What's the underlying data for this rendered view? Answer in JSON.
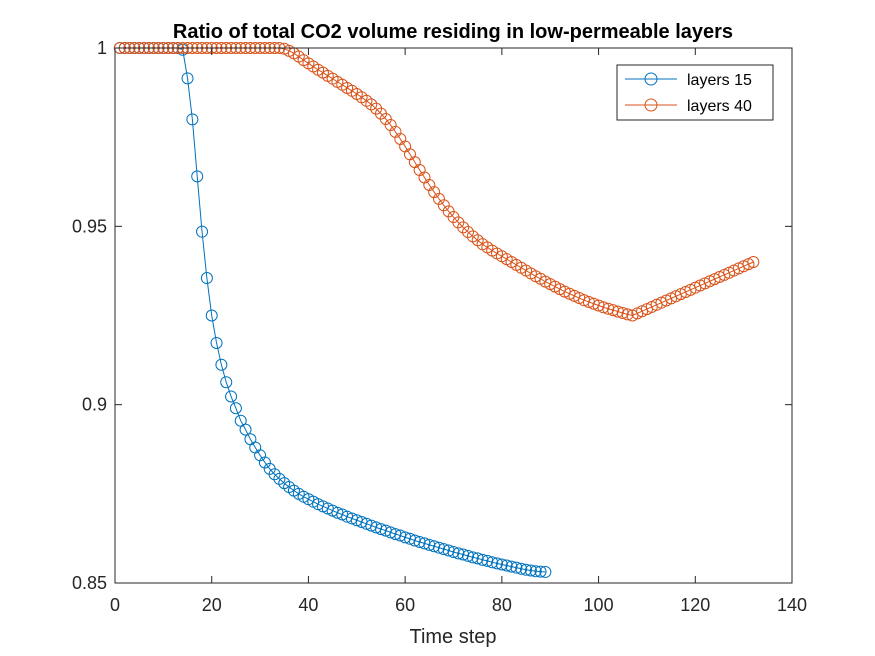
{
  "chart_data": {
    "type": "line",
    "title": "Ratio of total CO2 volume residing in low-permeable layers",
    "xlabel": "Time step",
    "ylabel": "",
    "xlim": [
      0,
      140
    ],
    "ylim": [
      0.85,
      1.0
    ],
    "xticks": [
      0,
      20,
      40,
      60,
      80,
      100,
      120,
      140
    ],
    "yticks": [
      0.85,
      0.9,
      0.95,
      1.0
    ],
    "xtick_labels": [
      "0",
      "20",
      "40",
      "60",
      "80",
      "100",
      "120",
      "140"
    ],
    "ytick_labels": [
      "0.85",
      "0.9",
      "0.95",
      "1"
    ],
    "grid": false,
    "legend_position": "top-right",
    "marker": "circle",
    "series": [
      {
        "name": "layers 15",
        "color": "#0072BD",
        "x": [
          1,
          2,
          3,
          4,
          5,
          6,
          7,
          8,
          9,
          10,
          11,
          12,
          13,
          14,
          15,
          16,
          17,
          18,
          19,
          20,
          21,
          22,
          23,
          24,
          25,
          26,
          27,
          28,
          29,
          30,
          31,
          32,
          33,
          34,
          35,
          36,
          37,
          38,
          39,
          40,
          41,
          42,
          43,
          44,
          45,
          46,
          47,
          48,
          49,
          50,
          51,
          52,
          53,
          54,
          55,
          56,
          57,
          58,
          59,
          60,
          61,
          62,
          63,
          64,
          65,
          66,
          67,
          68,
          69,
          70,
          71,
          72,
          73,
          74,
          75,
          76,
          77,
          78,
          79,
          80,
          81,
          82,
          83,
          84,
          85,
          86,
          87,
          88,
          89
        ],
        "y": [
          1.0,
          1.0,
          1.0,
          1.0,
          1.0,
          1.0,
          1.0,
          1.0,
          1.0,
          1.0,
          1.0,
          1.0,
          1.0,
          0.9995,
          0.9915,
          0.98,
          0.964,
          0.9485,
          0.9355,
          0.925,
          0.9173,
          0.9112,
          0.9063,
          0.9023,
          0.899,
          0.8955,
          0.893,
          0.8903,
          0.888,
          0.8858,
          0.8838,
          0.882,
          0.8805,
          0.8792,
          0.878,
          0.8769,
          0.8759,
          0.875,
          0.8742,
          0.8735,
          0.8728,
          0.8721,
          0.8715,
          0.8709,
          0.8703,
          0.8697,
          0.8692,
          0.8686,
          0.8681,
          0.8676,
          0.8671,
          0.8666,
          0.8661,
          0.8656,
          0.8651,
          0.8647,
          0.8642,
          0.8637,
          0.8633,
          0.8628,
          0.8624,
          0.8619,
          0.8615,
          0.8611,
          0.8607,
          0.8603,
          0.8599,
          0.8595,
          0.8591,
          0.8587,
          0.8583,
          0.858,
          0.8576,
          0.8572,
          0.8569,
          0.8565,
          0.8562,
          0.8558,
          0.8555,
          0.8552,
          0.8549,
          0.8546,
          0.8543,
          0.854,
          0.8537,
          0.8535,
          0.8533,
          0.8532,
          0.8531
        ]
      },
      {
        "name": "layers 40",
        "color": "#D95319",
        "x": [
          1,
          2,
          3,
          4,
          5,
          6,
          7,
          8,
          9,
          10,
          11,
          12,
          13,
          14,
          15,
          16,
          17,
          18,
          19,
          20,
          21,
          22,
          23,
          24,
          25,
          26,
          27,
          28,
          29,
          30,
          31,
          32,
          33,
          34,
          35,
          36,
          37,
          38,
          39,
          40,
          41,
          42,
          43,
          44,
          45,
          46,
          47,
          48,
          49,
          50,
          51,
          52,
          53,
          54,
          55,
          56,
          57,
          58,
          59,
          60,
          61,
          62,
          63,
          64,
          65,
          66,
          67,
          68,
          69,
          70,
          71,
          72,
          73,
          74,
          75,
          76,
          77,
          78,
          79,
          80,
          81,
          82,
          83,
          84,
          85,
          86,
          87,
          88,
          89,
          90,
          91,
          92,
          93,
          94,
          95,
          96,
          97,
          98,
          99,
          100,
          101,
          102,
          103,
          104,
          105,
          106,
          107,
          108,
          109,
          110,
          111,
          112,
          113,
          114,
          115,
          116,
          117,
          118,
          119,
          120,
          121,
          122,
          123,
          124,
          125,
          126,
          127,
          128,
          129,
          130,
          131,
          132
        ],
        "y": [
          1.0,
          1.0,
          1.0,
          1.0,
          1.0,
          1.0,
          1.0,
          1.0,
          1.0,
          1.0,
          1.0,
          1.0,
          1.0,
          1.0,
          1.0,
          1.0,
          1.0,
          1.0,
          1.0,
          1.0,
          1.0,
          1.0,
          1.0,
          1.0,
          1.0,
          1.0,
          1.0,
          1.0,
          1.0,
          1.0,
          1.0,
          1.0,
          1.0,
          1.0,
          0.9998,
          0.9992,
          0.9985,
          0.9976,
          0.9966,
          0.9957,
          0.9948,
          0.9939,
          0.9931,
          0.9922,
          0.9914,
          0.9905,
          0.9897,
          0.9888,
          0.988,
          0.9871,
          0.9862,
          0.9852,
          0.9842,
          0.983,
          0.9816,
          0.9801,
          0.9784,
          0.9765,
          0.9745,
          0.9724,
          0.9702,
          0.968,
          0.9658,
          0.9637,
          0.9616,
          0.9596,
          0.9577,
          0.9559,
          0.9542,
          0.9526,
          0.9511,
          0.9497,
          0.9484,
          0.9472,
          0.9461,
          0.945,
          0.9441,
          0.9432,
          0.9424,
          0.9416,
          0.9408,
          0.94,
          0.9392,
          0.9384,
          0.9376,
          0.9368,
          0.936,
          0.9353,
          0.9345,
          0.9338,
          0.9331,
          0.9324,
          0.9317,
          0.9311,
          0.9305,
          0.9299,
          0.9293,
          0.9288,
          0.9283,
          0.9278,
          0.9273,
          0.9269,
          0.9265,
          0.9261,
          0.9257,
          0.9253,
          0.925,
          0.9256,
          0.9262,
          0.9268,
          0.9274,
          0.928,
          0.9286,
          0.9292,
          0.9298,
          0.9304,
          0.931,
          0.9316,
          0.9322,
          0.9328,
          0.9334,
          0.934,
          0.9346,
          0.9352,
          0.9358,
          0.9364,
          0.937,
          0.9376,
          0.9382,
          0.9388,
          0.9394,
          0.94
        ]
      }
    ]
  }
}
